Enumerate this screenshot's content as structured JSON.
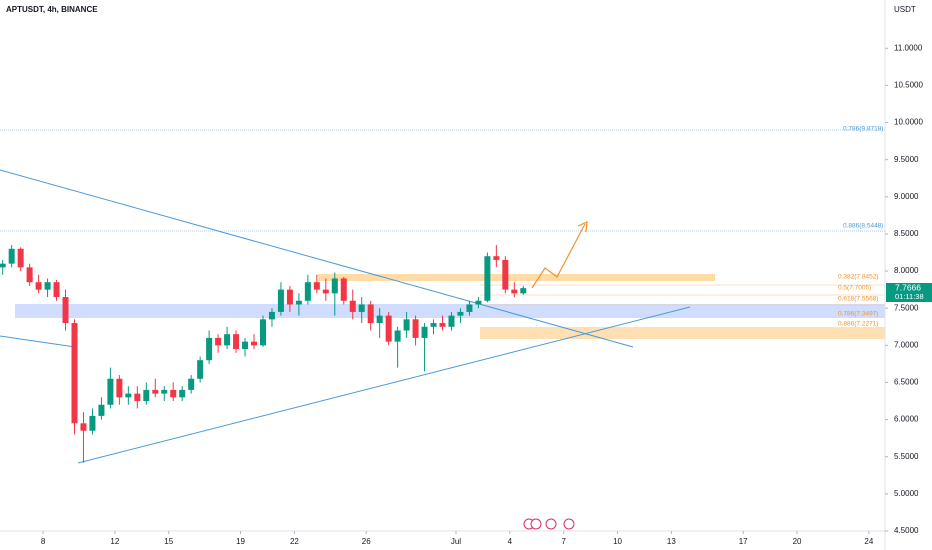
{
  "chart_data": {
    "type": "candlestick",
    "title": "APTUSDT, 4h, BINANCE",
    "y_axis_label": "USDT",
    "x": [
      5.75,
      6.25,
      6.75,
      7.25,
      7.75,
      8.25,
      8.75,
      9.25,
      9.75,
      10.25,
      10.75,
      11.25,
      11.75,
      12.25,
      12.75,
      13.25,
      13.75,
      14.25,
      14.75,
      15.25,
      15.75,
      16.25,
      16.75,
      17.25,
      17.75,
      18.25,
      18.75,
      19.25,
      19.75,
      20.25,
      20.75,
      21.25,
      21.75,
      22.25,
      22.75,
      23.25,
      23.75,
      24.25,
      24.75,
      25.25,
      25.75,
      26.25,
      26.75,
      27.25,
      27.75,
      28.25,
      28.75,
      29.25,
      29.75,
      30.25,
      30.75,
      31.25,
      31.75,
      32.25,
      32.75,
      33.25,
      33.75,
      34.25,
      34.75
    ],
    "open": [
      8.05,
      8.1,
      8.3,
      8.05,
      7.85,
      7.75,
      7.85,
      7.65,
      7.3,
      5.95,
      5.85,
      6.05,
      6.2,
      6.55,
      6.3,
      6.35,
      6.25,
      6.4,
      6.35,
      6.4,
      6.3,
      6.4,
      6.55,
      6.8,
      7.1,
      7.0,
      7.15,
      6.95,
      7.05,
      7.0,
      7.35,
      7.45,
      7.75,
      7.55,
      7.6,
      7.85,
      7.75,
      7.7,
      7.9,
      7.6,
      7.45,
      7.55,
      7.3,
      7.4,
      7.05,
      7.2,
      7.35,
      7.1,
      7.25,
      7.3,
      7.25,
      7.4,
      7.45,
      7.55,
      7.6,
      8.2,
      8.15,
      7.75,
      7.7
    ],
    "high": [
      8.15,
      8.35,
      8.32,
      8.1,
      7.95,
      7.9,
      7.88,
      7.75,
      7.35,
      6.1,
      6.15,
      6.3,
      6.7,
      6.6,
      6.45,
      6.45,
      6.5,
      6.55,
      6.45,
      6.5,
      6.45,
      6.6,
      6.85,
      7.2,
      7.15,
      7.25,
      7.2,
      7.1,
      7.15,
      7.4,
      7.5,
      7.85,
      7.8,
      7.7,
      7.95,
      7.95,
      7.9,
      7.98,
      7.92,
      7.75,
      7.65,
      7.6,
      7.5,
      7.45,
      7.25,
      7.45,
      7.4,
      7.3,
      7.35,
      7.4,
      7.45,
      7.5,
      7.6,
      7.65,
      8.25,
      8.35,
      8.2,
      7.85,
      7.8
    ],
    "low": [
      7.95,
      8.05,
      8.0,
      7.8,
      7.7,
      7.65,
      7.6,
      7.2,
      5.8,
      5.42,
      5.8,
      6.0,
      6.15,
      6.2,
      6.2,
      6.15,
      6.2,
      6.3,
      6.25,
      6.25,
      6.25,
      6.35,
      6.5,
      6.75,
      6.9,
      6.95,
      6.9,
      6.85,
      6.95,
      6.98,
      7.25,
      7.4,
      7.45,
      7.4,
      7.55,
      7.7,
      7.6,
      7.4,
      7.55,
      7.35,
      7.3,
      7.2,
      7.1,
      7.0,
      6.7,
      7.1,
      7.0,
      6.65,
      7.15,
      7.2,
      7.2,
      7.3,
      7.4,
      7.5,
      7.58,
      8.05,
      7.7,
      7.65,
      7.68
    ],
    "close": [
      8.1,
      8.3,
      8.05,
      7.85,
      7.75,
      7.85,
      7.65,
      7.3,
      5.95,
      5.85,
      6.05,
      6.2,
      6.55,
      6.3,
      6.35,
      6.25,
      6.4,
      6.35,
      6.4,
      6.3,
      6.4,
      6.55,
      6.8,
      7.1,
      7.0,
      7.15,
      6.95,
      7.05,
      7.0,
      7.35,
      7.45,
      7.75,
      7.55,
      7.6,
      7.85,
      7.75,
      7.7,
      7.9,
      7.6,
      7.45,
      7.55,
      7.3,
      7.4,
      7.05,
      7.2,
      7.35,
      7.1,
      7.25,
      7.3,
      7.25,
      7.4,
      7.45,
      7.55,
      7.6,
      8.2,
      8.15,
      7.75,
      7.7,
      7.77
    ],
    "up_color": "#089981",
    "down_color": "#f23645",
    "xlim": [
      5.6,
      54.9
    ],
    "xticks": [
      {
        "value": 8,
        "label": "8"
      },
      {
        "value": 12,
        "label": "12"
      },
      {
        "value": 15,
        "label": "15"
      },
      {
        "value": 19,
        "label": "19"
      },
      {
        "value": 22,
        "label": "22"
      },
      {
        "value": 26,
        "label": "26"
      },
      {
        "value": 31,
        "label": "Jul"
      },
      {
        "value": 34,
        "label": "4"
      },
      {
        "value": 37,
        "label": "7"
      },
      {
        "value": 40,
        "label": "10"
      },
      {
        "value": 43,
        "label": "13"
      },
      {
        "value": 47,
        "label": "17"
      },
      {
        "value": 50,
        "label": "20"
      },
      {
        "value": 54,
        "label": "24"
      }
    ],
    "ylim": [
      4.5,
      11.65
    ],
    "yticks": [
      {
        "value": 4.5,
        "label": "4.5000"
      },
      {
        "value": 5,
        "label": "5.0000"
      },
      {
        "value": 5.5,
        "label": "5.5000"
      },
      {
        "value": 6,
        "label": "6.0000"
      },
      {
        "value": 6.5,
        "label": "6.5000"
      },
      {
        "value": 7,
        "label": "7.0000"
      },
      {
        "value": 7.5,
        "label": "7.5000"
      },
      {
        "value": 8,
        "label": "8.0000"
      },
      {
        "value": 8.5,
        "label": "8.5000"
      },
      {
        "value": 9,
        "label": "9.0000"
      },
      {
        "value": 9.5,
        "label": "9.5000"
      },
      {
        "value": 10,
        "label": "10.0000"
      },
      {
        "value": 10.5,
        "label": "10.5000"
      },
      {
        "value": 11,
        "label": "11.0000"
      }
    ],
    "annotations": [
      "0.786(9.8718)",
      "0.886(8.5448)",
      "0.382(7.8452)",
      "0.5(7.7005)",
      "0.618(7.5568)",
      "0.786(7.3497)",
      "0.886(7.2271)"
    ],
    "last_price": "7.7666",
    "countdown": "01:11:38"
  }
}
